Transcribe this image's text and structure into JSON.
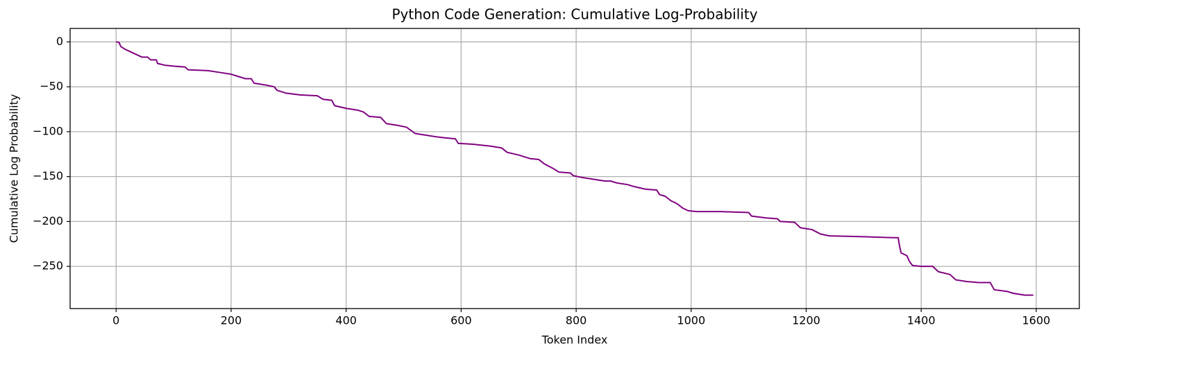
{
  "chart_data": {
    "type": "line",
    "title": "Python Code Generation: Cumulative Log-Probability",
    "x_label": "Token Index",
    "y_label": "Cumulative Log Probability",
    "color": "#800080",
    "grid": true,
    "xlim": [
      -80,
      1675
    ],
    "ylim": [
      -297,
      15
    ],
    "xticks": [
      0,
      200,
      400,
      600,
      800,
      1000,
      1200,
      1400,
      1600
    ],
    "yticks": [
      0,
      {
        "value": -50,
        "label": "−50"
      },
      {
        "value": -100,
        "label": "−100"
      },
      {
        "value": -150,
        "label": "−150"
      },
      {
        "value": -200,
        "label": "−200"
      },
      {
        "value": -250,
        "label": "−250"
      }
    ],
    "x": [
      0,
      5,
      8,
      15,
      25,
      35,
      45,
      55,
      60,
      70,
      72,
      85,
      100,
      120,
      125,
      160,
      180,
      200,
      210,
      225,
      235,
      240,
      260,
      275,
      280,
      295,
      320,
      350,
      360,
      375,
      380,
      400,
      420,
      430,
      440,
      460,
      470,
      490,
      505,
      520,
      540,
      560,
      575,
      590,
      595,
      620,
      650,
      670,
      680,
      700,
      720,
      735,
      745,
      760,
      770,
      790,
      795,
      810,
      830,
      850,
      860,
      870,
      890,
      900,
      920,
      940,
      945,
      955,
      965,
      975,
      985,
      995,
      1010,
      1050,
      1100,
      1105,
      1130,
      1150,
      1155,
      1180,
      1190,
      1210,
      1225,
      1240,
      1300,
      1350,
      1360,
      1362,
      1365,
      1375,
      1380,
      1385,
      1400,
      1420,
      1430,
      1450,
      1460,
      1480,
      1500,
      1520,
      1527,
      1550,
      1560,
      1580,
      1595
    ],
    "values": [
      0,
      -0.5,
      -5,
      -8,
      -11,
      -14,
      -17,
      -17,
      -20,
      -20,
      -24,
      -26,
      -27,
      -28,
      -31,
      -32,
      -34,
      -36,
      -38,
      -41,
      -41,
      -46,
      -48,
      -50,
      -54,
      -57,
      -59,
      -60,
      -64,
      -65,
      -71,
      -74,
      -76,
      -78,
      -83,
      -84,
      -91,
      -93,
      -95,
      -102,
      -104,
      -106,
      -107,
      -108,
      -113,
      -114,
      -116,
      -118,
      -123,
      -126,
      -130,
      -131,
      -136,
      -141,
      -145,
      -146,
      -149,
      -151,
      -153,
      -155,
      -155,
      -157,
      -159,
      -161,
      -164,
      -165,
      -170,
      -172,
      -177,
      -180,
      -185,
      -188,
      -189,
      -189,
      -190,
      -194,
      -196,
      -197,
      -200,
      -201,
      -207,
      -209,
      -214,
      -216,
      -217,
      -218,
      -218,
      -226,
      -235,
      -238,
      -245,
      -249,
      -250,
      -250,
      -256,
      -259,
      -265,
      -267,
      -268,
      -268,
      -276,
      -278,
      -280,
      -282,
      -282
    ]
  }
}
